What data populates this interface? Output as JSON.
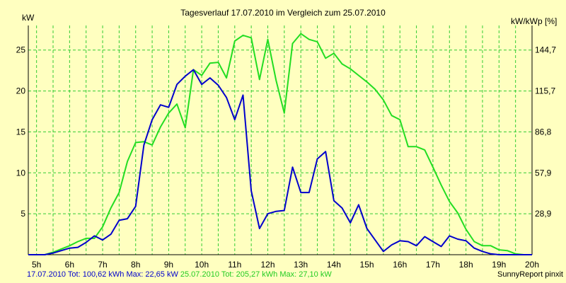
{
  "chart_data": {
    "type": "line",
    "title": "Tagesverlauf 17.07.2010 im Vergleich zum 25.07.2010",
    "ylabel_left": "kW",
    "ylabel_right": "kW/kWp [%]",
    "ylim": [
      0,
      28
    ],
    "y_ticks": [
      5,
      10,
      15,
      20,
      25
    ],
    "y_right_ticks": [
      "28,9",
      "57,9",
      "86,8",
      "115,7",
      "144,7"
    ],
    "x_ticks": [
      "5h",
      "6h",
      "7h",
      "8h",
      "9h",
      "10h",
      "11h",
      "12h",
      "13h",
      "14h",
      "15h",
      "16h",
      "17h",
      "18h",
      "19h",
      "20h"
    ],
    "grid": true,
    "x": [
      4.75,
      5.0,
      5.25,
      5.5,
      5.75,
      6.0,
      6.25,
      6.5,
      6.75,
      7.0,
      7.25,
      7.5,
      7.75,
      8.0,
      8.25,
      8.5,
      8.75,
      9.0,
      9.25,
      9.5,
      9.75,
      10.0,
      10.25,
      10.5,
      10.75,
      11.0,
      11.25,
      11.5,
      11.75,
      12.0,
      12.25,
      12.5,
      12.75,
      13.0,
      13.25,
      13.5,
      13.75,
      14.0,
      14.25,
      14.5,
      14.75,
      15.0,
      15.25,
      15.5,
      15.75,
      16.0,
      16.25,
      16.5,
      16.75,
      17.0,
      17.25,
      17.5,
      17.75,
      18.0,
      18.25,
      18.5,
      18.75,
      19.0,
      19.25,
      19.5,
      19.75,
      20.0
    ],
    "series": [
      {
        "name": "17.07.2010",
        "color": "#0000cc",
        "values": [
          0,
          0,
          0,
          0.2,
          0.5,
          0.8,
          0.9,
          1.5,
          2.3,
          1.8,
          2.5,
          4.2,
          4.4,
          5.9,
          13.4,
          16.5,
          18.3,
          18.0,
          20.8,
          21.8,
          22.6,
          20.8,
          21.6,
          20.7,
          19.2,
          16.5,
          19.5,
          7.8,
          3.2,
          5.0,
          5.3,
          5.4,
          10.7,
          7.6,
          7.6,
          11.7,
          12.6,
          6.6,
          5.7,
          3.9,
          6.1,
          3.2,
          1.8,
          0.4,
          1.2,
          1.7,
          1.6,
          1.1,
          2.2,
          1.6,
          1.0,
          2.3,
          1.9,
          1.7,
          0.8,
          0.4,
          0.1,
          0,
          0,
          0,
          0,
          0
        ]
      },
      {
        "name": "25.07.2010",
        "color": "#22dd22",
        "values": [
          0,
          0,
          0,
          0.3,
          0.7,
          1.1,
          1.6,
          2.0,
          2.0,
          3.4,
          5.7,
          7.6,
          11.4,
          13.7,
          13.8,
          13.4,
          15.6,
          17.3,
          18.4,
          15.5,
          22.6,
          21.9,
          23.4,
          23.5,
          21.6,
          26.1,
          26.8,
          26.5,
          21.4,
          26.3,
          21.3,
          17.3,
          25.8,
          27.0,
          26.3,
          26.0,
          24.0,
          24.6,
          23.3,
          22.7,
          21.9,
          21.1,
          20.2,
          18.9,
          17.0,
          16.5,
          13.2,
          13.2,
          12.8,
          10.7,
          8.5,
          6.5,
          5.1,
          3.1,
          1.6,
          1.1,
          1.1,
          0.6,
          0.5,
          0.1,
          0,
          0
        ]
      }
    ]
  },
  "footer": {
    "s1_label": "17.07.2010",
    "s1_stats": "Tot: 100,62 kWh Max: 22,65 kW",
    "s2_label": "25.07.2010",
    "s2_stats": "Tot: 205,27 kWh Max: 27,10 kW",
    "credit": "SunnyReport pinxit"
  },
  "colors": {
    "background": "#ffffc0",
    "grid": "#33cc33",
    "axis": "#000000"
  }
}
